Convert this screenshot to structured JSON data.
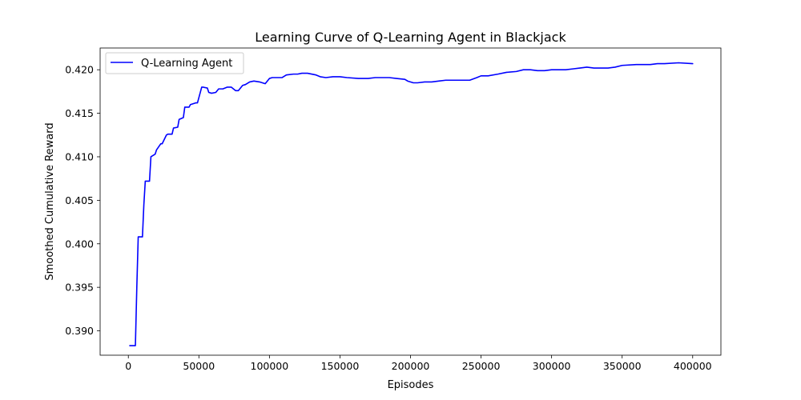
{
  "chart_data": {
    "type": "line",
    "title": "Learning Curve of Q-Learning Agent in Blackjack",
    "xlabel": "Episodes",
    "ylabel": "Smoothed Cumulative Reward",
    "xlim": [
      -20000,
      420000
    ],
    "ylim": [
      0.3872,
      0.4225
    ],
    "xticks": [
      0,
      50000,
      100000,
      150000,
      200000,
      250000,
      300000,
      350000,
      400000
    ],
    "xtick_labels": [
      "0",
      "50000",
      "100000",
      "150000",
      "200000",
      "250000",
      "300000",
      "350000",
      "400000"
    ],
    "yticks": [
      0.39,
      0.395,
      0.4,
      0.405,
      0.41,
      0.415,
      0.42
    ],
    "ytick_labels": [
      "0.390",
      "0.395",
      "0.400",
      "0.405",
      "0.410",
      "0.415",
      "0.420"
    ],
    "grid": false,
    "legend": {
      "placement": "upper-left",
      "entries": [
        "Q-Learning Agent"
      ]
    },
    "series": [
      {
        "name": "Q-Learning Agent",
        "color": "#0000ff",
        "x": [
          1000,
          5000,
          6000,
          7000,
          10000,
          11000,
          12000,
          15000,
          16000,
          19000,
          20000,
          23000,
          24000,
          27000,
          28000,
          31000,
          32000,
          35000,
          36000,
          39000,
          40000,
          43000,
          44000,
          48000,
          49000,
          52000,
          53000,
          56000,
          57000,
          59000,
          62000,
          64000,
          67000,
          70000,
          73000,
          76000,
          78000,
          81000,
          83000,
          86000,
          89000,
          93000,
          97000,
          100000,
          102000,
          109000,
          112000,
          117000,
          120000,
          123000,
          127000,
          133000,
          136000,
          140000,
          145000,
          150000,
          155000,
          163000,
          170000,
          175000,
          185000,
          190000,
          196000,
          198000,
          202000,
          205000,
          210000,
          215000,
          220000,
          225000,
          230000,
          237000,
          242000,
          247000,
          250000,
          255000,
          262000,
          268000,
          275000,
          280000,
          285000,
          290000,
          295000,
          300000,
          305000,
          310000,
          315000,
          320000,
          325000,
          330000,
          335000,
          340000,
          345000,
          350000,
          360000,
          365000,
          370000,
          375000,
          380000,
          390000,
          400000
        ],
        "y": [
          0.3883,
          0.3883,
          0.395,
          0.4008,
          0.4008,
          0.4045,
          0.4072,
          0.4072,
          0.41,
          0.4103,
          0.4108,
          0.4115,
          0.4115,
          0.4125,
          0.4126,
          0.4126,
          0.4133,
          0.4134,
          0.4143,
          0.4145,
          0.4157,
          0.4157,
          0.416,
          0.4162,
          0.4162,
          0.418,
          0.418,
          0.4179,
          0.4174,
          0.4173,
          0.4174,
          0.4178,
          0.4178,
          0.418,
          0.418,
          0.4176,
          0.4176,
          0.4182,
          0.4183,
          0.4186,
          0.4187,
          0.4186,
          0.4184,
          0.419,
          0.4191,
          0.4191,
          0.4194,
          0.4195,
          0.4195,
          0.4196,
          0.4196,
          0.4194,
          0.4192,
          0.4191,
          0.4192,
          0.4192,
          0.4191,
          0.419,
          0.419,
          0.4191,
          0.4191,
          0.419,
          0.4189,
          0.4187,
          0.4185,
          0.4185,
          0.4186,
          0.4186,
          0.4187,
          0.4188,
          0.4188,
          0.4188,
          0.4188,
          0.4191,
          0.4193,
          0.4193,
          0.4195,
          0.4197,
          0.4198,
          0.42,
          0.42,
          0.4199,
          0.4199,
          0.42,
          0.42,
          0.42,
          0.4201,
          0.4202,
          0.4203,
          0.4202,
          0.4202,
          0.4202,
          0.4203,
          0.4205,
          0.4206,
          0.4206,
          0.4206,
          0.4207,
          0.4207,
          0.4208,
          0.4207
        ]
      }
    ]
  }
}
